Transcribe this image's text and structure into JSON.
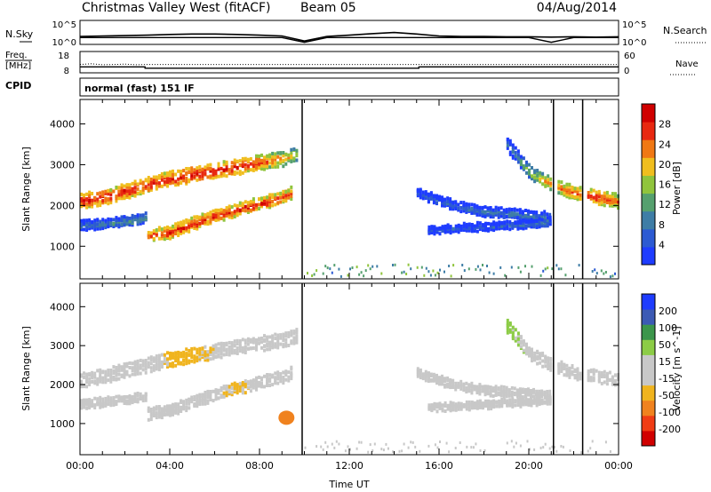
{
  "header": {
    "station": "Christmas Valley West (fitACF)",
    "beam": "Beam 05",
    "date": "04/Aug/2014"
  },
  "sky_panel": {
    "left_label": "N.Sky",
    "left_ticks": [
      "10^5",
      "10^0"
    ],
    "right_label": "N.Search",
    "right_ticks": [
      "10^5",
      "10^0"
    ]
  },
  "freq_panel": {
    "left_label_1": "Freq.",
    "left_label_2": "[MHz]",
    "left_ticks": [
      "18",
      "8"
    ],
    "right_label": "Nave",
    "right_ticks": [
      "60",
      "0"
    ]
  },
  "cpid": {
    "label": "CPID",
    "mode": "normal (fast) 151 IF"
  },
  "colors": {
    "power_scale": [
      "#1e3cff",
      "#2c5ad2",
      "#3e7da6",
      "#55a06e",
      "#90c43c",
      "#f0be1e",
      "#f07814",
      "#e82810",
      "#d00000"
    ],
    "velocity_scale": [
      "#d00000",
      "#f03c14",
      "#f0821e",
      "#f0b41e",
      "#c8c8c8",
      "#c8c8c8",
      "#8ccc46",
      "#3c964b",
      "#3c5ab4",
      "#1e3cff"
    ]
  },
  "chart_data": [
    {
      "type": "line",
      "title": "",
      "xlabel": "",
      "ylabel": "N.Sky",
      "yscale": "log",
      "ylim_log10": [
        0,
        5
      ],
      "x_hours": [
        0,
        1,
        2,
        3,
        4,
        5,
        6,
        7,
        8,
        9,
        10,
        11,
        12,
        13,
        14,
        15,
        16,
        17,
        18,
        19,
        20,
        21,
        22,
        23,
        24
      ],
      "series": [
        {
          "name": "N.Sky",
          "log10_values": [
            1.6,
            1.7,
            1.8,
            1.9,
            2.1,
            2.2,
            2.2,
            2.1,
            1.9,
            1.7,
            0.4,
            1.6,
            1.9,
            2.3,
            2.6,
            2.2,
            1.7,
            1.6,
            1.6,
            1.5,
            1.5,
            1.4,
            1.5,
            1.4,
            1.5
          ]
        },
        {
          "name": "N.Search",
          "log10_values": [
            1.3,
            1.3,
            1.3,
            1.3,
            1.3,
            1.3,
            1.3,
            1.3,
            1.3,
            1.3,
            0.1,
            1.3,
            1.3,
            1.3,
            1.3,
            1.3,
            1.3,
            1.3,
            1.3,
            1.3,
            1.3,
            0.1,
            1.3,
            1.3,
            1.3
          ]
        }
      ]
    },
    {
      "type": "line",
      "title": "",
      "xlabel": "",
      "ylabel": "Freq. [MHz]",
      "ylim": [
        8,
        18
      ],
      "y2label": "Nave",
      "y2lim": [
        0,
        60
      ],
      "series": [
        {
          "name": "Freq.",
          "x_hours": [
            0,
            2.9,
            2.9,
            15.1,
            15.1,
            24
          ],
          "values": [
            10.6,
            10.6,
            9.9,
            9.9,
            10.6,
            10.6
          ]
        },
        {
          "name": "Nave",
          "x_hours": [
            0,
            0.5,
            1,
            1.5,
            2,
            2.5,
            3,
            6,
            9,
            12,
            15,
            18,
            21,
            24
          ],
          "values": [
            23,
            25,
            22,
            23,
            24,
            22,
            23,
            23,
            23,
            23,
            23,
            23,
            23,
            23
          ]
        }
      ]
    },
    {
      "type": "heatmap",
      "title": "",
      "xlabel": "",
      "ylabel": "Slant Range [km]",
      "ylim": [
        200,
        4600
      ],
      "xlim_hours": [
        0,
        24
      ],
      "colorbar": {
        "label": "Power [dB]",
        "ticks": [
          4,
          8,
          12,
          16,
          20,
          24,
          28
        ],
        "range": [
          0,
          32
        ]
      },
      "echo_bands": [
        {
          "x_hours": [
            0,
            1,
            2,
            3,
            4,
            5,
            6,
            7,
            8,
            9,
            9.6
          ],
          "ranges_km": [
            2100,
            2200,
            2350,
            2500,
            2650,
            2750,
            2850,
            2950,
            3050,
            3150,
            3250
          ],
          "width_km": 320,
          "power_dB": [
            28,
            28,
            28,
            28,
            28,
            29,
            29,
            28,
            26,
            22,
            18
          ]
        },
        {
          "x_hours": [
            3,
            4,
            5,
            6,
            7,
            8,
            9,
            9.4
          ],
          "ranges_km": [
            1250,
            1350,
            1550,
            1750,
            1900,
            2050,
            2200,
            2300
          ],
          "width_km": 260,
          "power_dB": [
            26,
            27,
            28,
            28,
            28,
            28,
            27,
            24
          ]
        },
        {
          "x_hours": [
            0,
            1,
            2,
            3
          ],
          "ranges_km": [
            1500,
            1550,
            1600,
            1700
          ],
          "width_km": 200,
          "power_dB": [
            10,
            10,
            12,
            12
          ]
        },
        {
          "x_hours": [
            15,
            16,
            17,
            18,
            19,
            20,
            21
          ],
          "ranges_km": [
            2300,
            2100,
            1950,
            1850,
            1800,
            1750,
            1700
          ],
          "width_km": 200,
          "power_dB": [
            6,
            7,
            8,
            9,
            10,
            10,
            12
          ]
        },
        {
          "x_hours": [
            15.5,
            17,
            18.5,
            20,
            21
          ],
          "ranges_km": [
            1400,
            1450,
            1500,
            1550,
            1600
          ],
          "width_km": 160,
          "power_dB": [
            5,
            6,
            6,
            8,
            10
          ]
        },
        {
          "x_hours": [
            19,
            20,
            21,
            22,
            23,
            24
          ],
          "ranges_km": [
            3500,
            2800,
            2500,
            2300,
            2200,
            2100
          ],
          "width_km": 280,
          "power_dB": [
            8,
            16,
            24,
            26,
            28,
            24
          ]
        }
      ],
      "ground_scatter_band_km": [
        250,
        550
      ],
      "data_gaps_hours": [
        9.9,
        21.1,
        22.4
      ]
    },
    {
      "type": "heatmap",
      "title": "",
      "xlabel": "Time UT",
      "ylabel": "Slant Range [km]",
      "ylim": [
        200,
        4600
      ],
      "xlim_hours": [
        0,
        24
      ],
      "xticks": [
        "00:00",
        "04:00",
        "08:00",
        "12:00",
        "16:00",
        "20:00",
        "00:00"
      ],
      "colorbar": {
        "label": "Velocity [m s^-1]",
        "ticks": [
          -200,
          -100,
          -50,
          -15,
          15,
          50,
          100,
          200
        ],
        "range": [
          -250,
          250
        ]
      },
      "echo_bands": [
        {
          "x_hours": [
            0,
            1,
            2,
            3,
            4,
            5,
            6,
            7,
            8,
            9,
            9.6
          ],
          "ranges_km": [
            2100,
            2200,
            2350,
            2500,
            2650,
            2750,
            2850,
            2950,
            3050,
            3150,
            3250
          ],
          "width_km": 320,
          "velocity": [
            -10,
            -10,
            -10,
            -10,
            -60,
            -60,
            -40,
            -30,
            -20,
            -10,
            0
          ]
        },
        {
          "x_hours": [
            3,
            4,
            5,
            6,
            7,
            8,
            9,
            9.4
          ],
          "ranges_km": [
            1250,
            1350,
            1550,
            1750,
            1900,
            2050,
            2200,
            2300
          ],
          "width_km": 260,
          "velocity": [
            -10,
            -10,
            -10,
            -40,
            -60,
            -30,
            -10,
            -10
          ]
        },
        {
          "x_hours": [
            0,
            1,
            2,
            3
          ],
          "ranges_km": [
            1500,
            1550,
            1600,
            1700
          ],
          "width_km": 200,
          "velocity": [
            -10,
            -10,
            -10,
            -10
          ]
        },
        {
          "x_hours": [
            15,
            16,
            17,
            18,
            19,
            20,
            21
          ],
          "ranges_km": [
            2300,
            2100,
            1950,
            1850,
            1800,
            1750,
            1700
          ],
          "width_km": 200,
          "velocity": [
            0,
            0,
            0,
            0,
            0,
            0,
            0
          ]
        },
        {
          "x_hours": [
            15.5,
            17,
            18.5,
            20,
            21
          ],
          "ranges_km": [
            1400,
            1450,
            1500,
            1550,
            1600
          ],
          "width_km": 160,
          "velocity": [
            0,
            0,
            0,
            0,
            0
          ]
        },
        {
          "x_hours": [
            19,
            20,
            21,
            22,
            23,
            24
          ],
          "ranges_km": [
            3500,
            2800,
            2500,
            2300,
            2200,
            2100
          ],
          "width_km": 280,
          "velocity": [
            30,
            0,
            0,
            0,
            0,
            0
          ]
        }
      ],
      "blob": {
        "x_hour": 9.2,
        "range_km": 1150,
        "velocity": -180
      },
      "ground_scatter_band_km": [
        250,
        550
      ],
      "data_gaps_hours": [
        9.9,
        21.1,
        22.4
      ]
    }
  ]
}
